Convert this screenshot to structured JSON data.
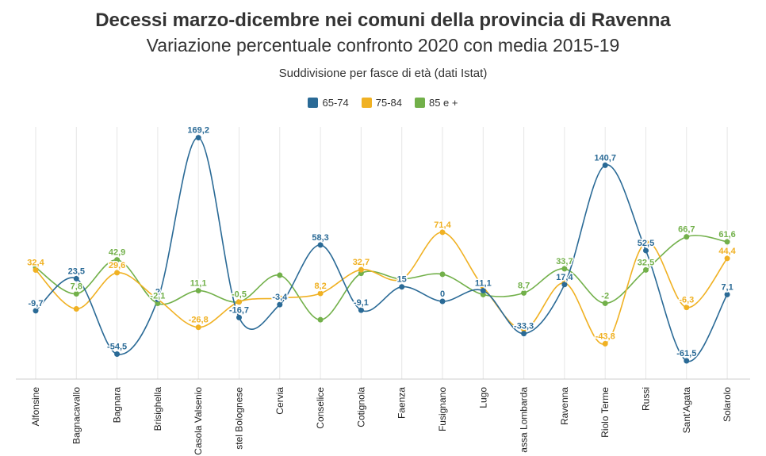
{
  "title": "Decessi marzo-dicembre nei comuni della provincia di Ravenna",
  "subtitle": "Variazione percentuale confronto 2020 con media 2015-19",
  "caption": "Suddivisione per fasce di età (dati Istat)",
  "colors": {
    "s65": "#2a6a96",
    "s75": "#f0b123",
    "s85": "#72b04a",
    "grid": "#e6e6e6",
    "axis": "#cccccc"
  },
  "chart_data": {
    "type": "line",
    "categories": [
      "Alfonsine",
      "Bagnacavallo",
      "Bagnara",
      "Brisighella",
      "Casola Valsenio",
      "Castel Bolognese",
      "Cervia",
      "Conselice",
      "Cotignola",
      "Faenza",
      "Fusignano",
      "Lugo",
      "Massa Lombarda",
      "Ravenna",
      "Riolo Terme",
      "Russi",
      "Sant'Agata",
      "Solarolo"
    ],
    "tick_labels": [
      "Alfonsine",
      "Bagnacavallo",
      "Bagnara",
      "Brisighella",
      "Casola Valsenio",
      "stel Bolognese",
      "Cervia",
      "Conselice",
      "Cotignola",
      "Faenza",
      "Fusignano",
      "Lugo",
      "assa Lombarda",
      "Ravenna",
      "Riolo Terme",
      "Russi",
      "Sant'Agata",
      "Solarolo"
    ],
    "series": [
      {
        "name": "65-74",
        "values": [
          -9.7,
          23.5,
          -54.5,
          2,
          169.2,
          -16.7,
          -3.4,
          58.3,
          -9.1,
          15,
          0,
          11.1,
          -33.3,
          17.4,
          140.7,
          52.5,
          -61.5,
          7.1
        ],
        "labels": [
          "-9,7",
          "23,5",
          "-54,5",
          "2",
          "169,2",
          "-16,7",
          "-3,4",
          "58,3",
          "-9,1",
          "15",
          "0",
          "11,1",
          "-33,3",
          "17,4",
          "140,7",
          "52,5",
          "-61,5",
          "7,1"
        ]
      },
      {
        "name": "75-84",
        "values": [
          32.4,
          -7.8,
          29.6,
          2.1,
          -26.8,
          -0.5,
          3.4,
          8.2,
          32.7,
          23,
          71.4,
          15,
          -29,
          19,
          -43.8,
          61,
          -6.3,
          44.4
        ],
        "labels": [
          "32,4",
          "",
          "29,6",
          "",
          "-26,8",
          "",
          "",
          "8,2",
          "32,7",
          "",
          "71,4",
          "",
          "",
          "",
          "-43,8",
          "",
          "-6,3",
          "44,4"
        ]
      },
      {
        "name": "85 e +",
        "values": [
          35,
          7.8,
          42.9,
          -2.1,
          11.1,
          -0.5,
          27,
          -19,
          29,
          23,
          28,
          7,
          8.7,
          33.7,
          -2,
          32.5,
          66.7,
          61.6
        ],
        "labels": [
          "",
          "7,8",
          "42,9",
          "-2,1",
          "11,1",
          "-0,5",
          "",
          "",
          "",
          "",
          "",
          "",
          "8,7",
          "33,7",
          "-2",
          "32,5",
          "66,7",
          "61,6"
        ]
      }
    ],
    "ylim": [
      -75,
      185
    ],
    "grid": true,
    "legend_position": "top"
  }
}
